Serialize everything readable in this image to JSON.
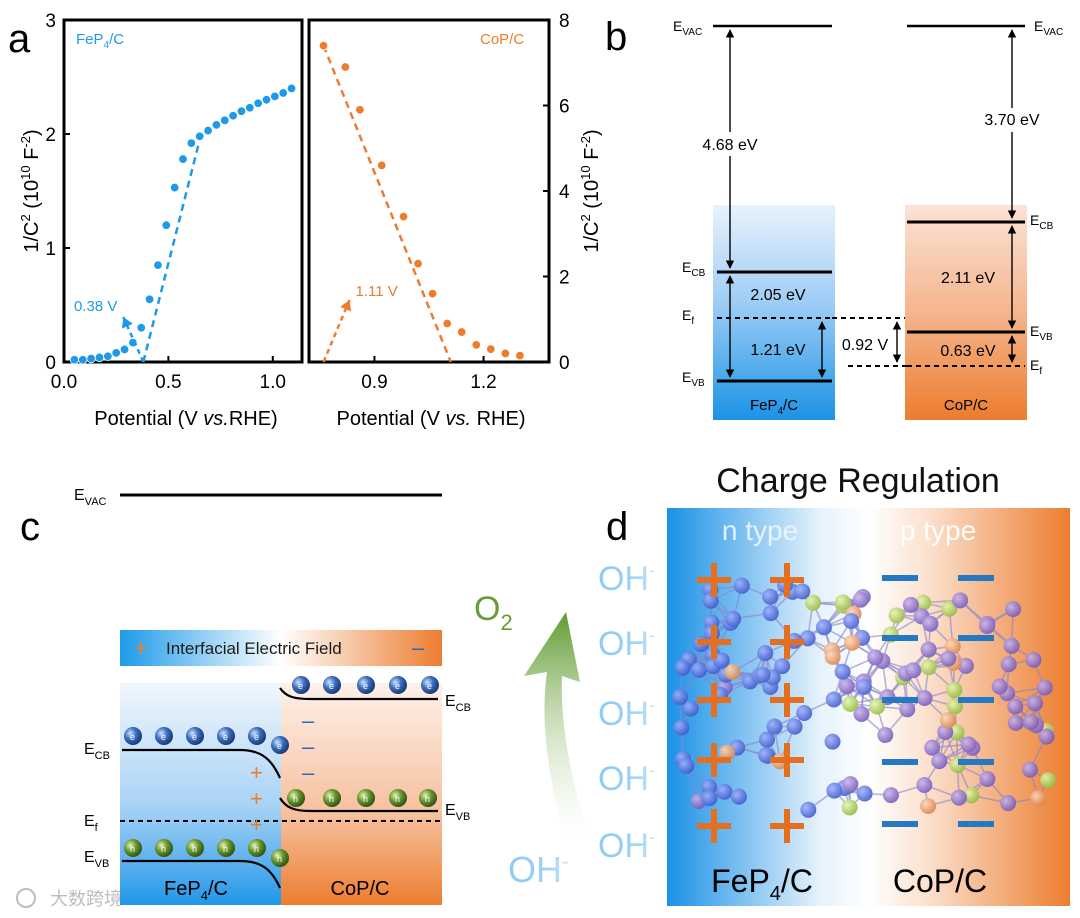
{
  "panels": {
    "a": {
      "letter": "a",
      "left_plot": {
        "label": "FeP4/C",
        "label_main": "FeP",
        "label_sub": "4",
        "label_rest": "/C",
        "color": "#1e9be8",
        "xlabel_main": "Potential (V ",
        "xlabel_ital": "vs.",
        "xlabel_end": "RHE)",
        "ylabel": "1/C2 (1010 F-2)",
        "yticks": [
          "0",
          "1",
          "2",
          "3"
        ],
        "xticks": [
          "0.0",
          "0.5",
          "1.0"
        ],
        "annotation": "0.38 V"
      },
      "right_plot": {
        "label": "CoP/C",
        "color": "#ec7d2f",
        "xlabel_main": "Potential (V ",
        "xlabel_ital": "vs.",
        "xlabel_end": " RHE)",
        "ylabel": "1/C2 (1010 F-2)",
        "yticks": [
          "0",
          "2",
          "4",
          "6",
          "8"
        ],
        "xticks": [
          "0.9",
          "1.2"
        ],
        "annotation": "1.11 V"
      }
    },
    "b": {
      "letter": "b",
      "evac": "E",
      "evac_sub": "VAC",
      "fep": {
        "name_main": "FeP",
        "name_sub": "4",
        "name_rest": "/C",
        "work": "4.68 eV",
        "gap": "2.05 eV",
        "ef_vb": "1.21 eV"
      },
      "cop": {
        "name": "CoP/C",
        "work": "3.70 eV",
        "gap": "2.11 eV",
        "ef_vb": "0.63 eV"
      },
      "offset": "0.92 V",
      "labels": {
        "ecb": "CB",
        "evb": "VB",
        "ef": "f",
        "e": "E"
      }
    },
    "c": {
      "letter": "c",
      "field_label": "Interfacial Electric Field",
      "plus": "+",
      "minus": "–",
      "fep_main": "FeP",
      "fep_sub": "4",
      "fep_rest": "/C",
      "cop": "CoP/C",
      "electron": "e",
      "hole": "h",
      "o2_main": "O",
      "o2_sub": "2",
      "oh": "OH"
    },
    "d": {
      "letter": "d",
      "title": "Charge Regulation",
      "n_type": "n type",
      "p_type": "p type",
      "oh": "OH",
      "fep_main": "FeP",
      "fep_sub": "4",
      "fep_rest": "/C",
      "cop": "CoP/C"
    }
  },
  "watermark": "大数跨境",
  "colors": {
    "blue": "#1e9be8",
    "orange": "#ec7d2f",
    "green": "#6a9a3a"
  },
  "chart_data": [
    {
      "type": "scatter",
      "title": "FeP4/C",
      "xlabel": "Potential (V vs.RHE)",
      "ylabel": "1/C2 (1010 F-2)",
      "xlim": [
        0.0,
        1.14
      ],
      "ylim": [
        0,
        3
      ],
      "x": [
        0.05,
        0.09,
        0.13,
        0.17,
        0.21,
        0.25,
        0.29,
        0.33,
        0.37,
        0.41,
        0.45,
        0.49,
        0.53,
        0.57,
        0.61,
        0.65,
        0.69,
        0.73,
        0.77,
        0.81,
        0.85,
        0.89,
        0.93,
        0.97,
        1.01,
        1.05,
        1.09
      ],
      "y": [
        0.02,
        0.02,
        0.03,
        0.04,
        0.05,
        0.08,
        0.11,
        0.17,
        0.3,
        0.55,
        0.85,
        1.2,
        1.53,
        1.78,
        1.92,
        1.98,
        2.03,
        2.08,
        2.12,
        2.16,
        2.2,
        2.23,
        2.27,
        2.3,
        2.33,
        2.36,
        2.4
      ],
      "fit_line": {
        "x": [
          0.38,
          0.65
        ],
        "y": [
          0.0,
          1.95
        ]
      },
      "annotation": "0.38 V"
    },
    {
      "type": "scatter",
      "title": "CoP/C",
      "xlabel": "Potential (V vs. RHE)",
      "ylabel": "1/C2 (1010 F-2)",
      "xlim": [
        0.72,
        1.38
      ],
      "ylim": [
        0,
        8
      ],
      "x": [
        0.76,
        0.82,
        0.86,
        0.92,
        0.98,
        1.02,
        1.06,
        1.1,
        1.14,
        1.18,
        1.22,
        1.26,
        1.3
      ],
      "y": [
        7.4,
        6.9,
        5.9,
        4.6,
        3.4,
        2.3,
        1.6,
        0.9,
        0.7,
        0.4,
        0.3,
        0.2,
        0.15
      ],
      "fit_line": {
        "x": [
          0.76,
          1.11
        ],
        "y": [
          7.4,
          0.0
        ]
      },
      "annotation": "1.11 V"
    }
  ]
}
